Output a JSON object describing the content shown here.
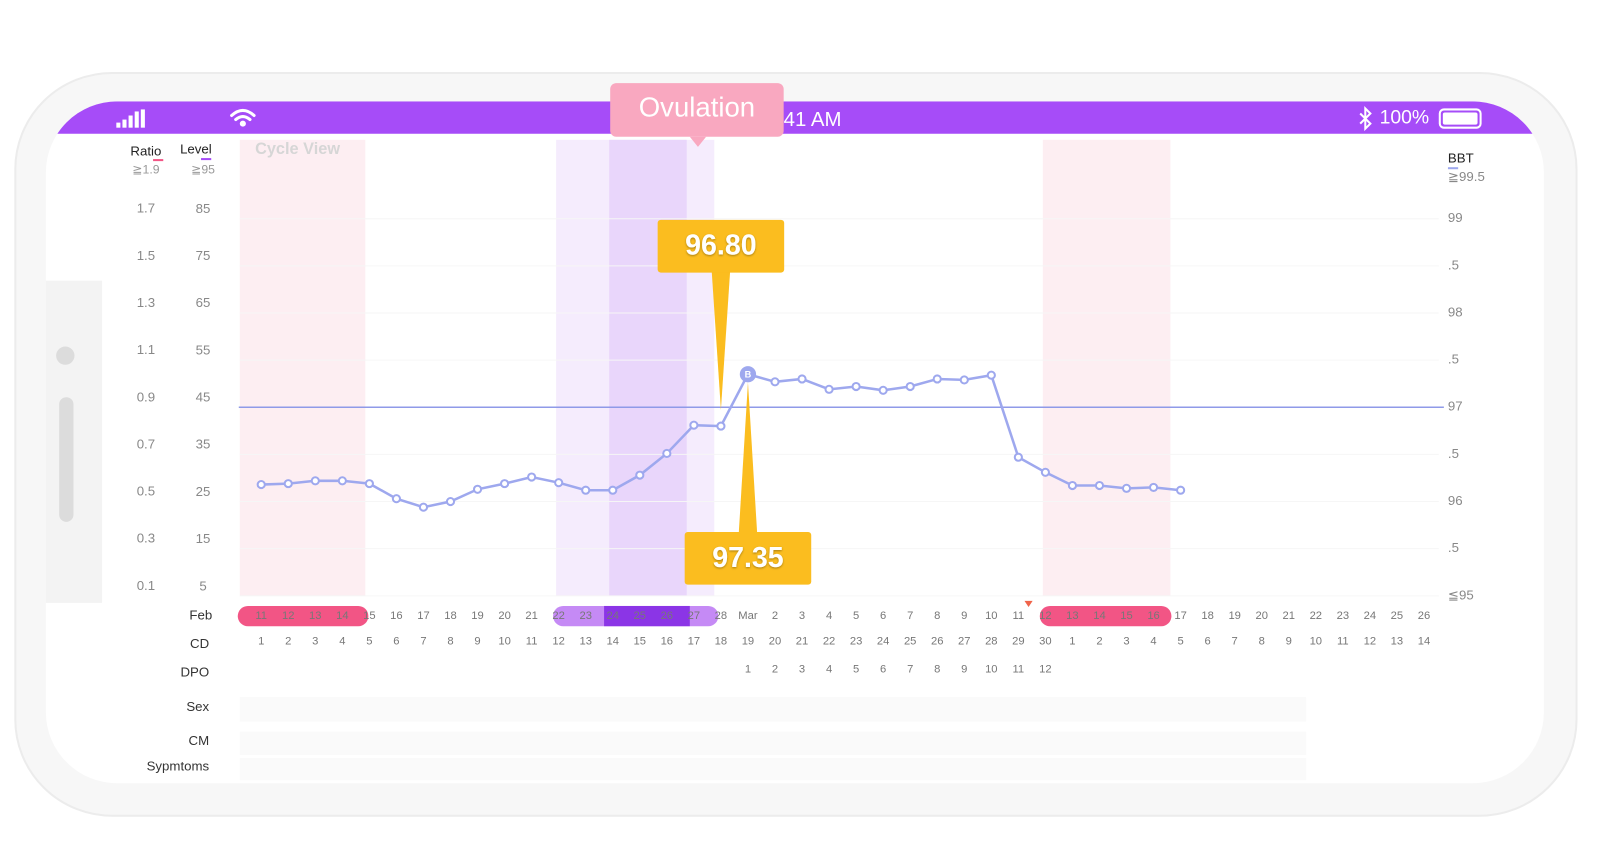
{
  "status_bar": {
    "time": "41 AM",
    "battery": "100%"
  },
  "popup": "Ovulation",
  "view_title": "Cycle View",
  "chart_data": {
    "type": "line",
    "month_label": "Feb",
    "categories": [
      "11",
      "12",
      "13",
      "14",
      "15",
      "16",
      "17",
      "18",
      "19",
      "20",
      "21",
      "22",
      "23",
      "24",
      "25",
      "26",
      "27",
      "28",
      "Mar",
      "2",
      "3",
      "4",
      "5",
      "6",
      "7",
      "8",
      "9",
      "10",
      "11",
      "12",
      "13",
      "14",
      "15",
      "16",
      "17",
      "18",
      "19",
      "20",
      "21",
      "22",
      "23",
      "24",
      "25",
      "26"
    ],
    "cd": [
      "1",
      "2",
      "3",
      "4",
      "5",
      "6",
      "7",
      "8",
      "9",
      "10",
      "11",
      "12",
      "13",
      "14",
      "15",
      "16",
      "17",
      "18",
      "19",
      "20",
      "21",
      "22",
      "23",
      "24",
      "25",
      "26",
      "27",
      "28",
      "29",
      "30",
      "1",
      "2",
      "3",
      "4",
      "5",
      "6",
      "7",
      "8",
      "9",
      "10",
      "11",
      "12",
      "13",
      "14"
    ],
    "dpo": [
      null,
      null,
      null,
      null,
      null,
      null,
      null,
      null,
      null,
      null,
      null,
      null,
      null,
      null,
      null,
      null,
      null,
      null,
      "1",
      "2",
      "3",
      "4",
      "5",
      "6",
      "7",
      "8",
      "9",
      "10",
      "11",
      "12",
      null,
      null,
      null,
      null,
      null,
      null,
      null,
      null,
      null,
      null,
      null,
      null,
      null,
      null
    ],
    "row_labels": {
      "cd": "CD",
      "dpo": "DPO",
      "sex": "Sex",
      "cm": "CM",
      "symptoms": "Sypmtoms"
    },
    "series": [
      {
        "name": "BBT",
        "color": "#9ea8ee",
        "values": [
          96.18,
          96.19,
          96.22,
          96.22,
          96.19,
          96.03,
          95.94,
          96.0,
          96.13,
          96.19,
          96.26,
          96.2,
          96.12,
          96.12,
          96.28,
          96.51,
          96.81,
          96.8,
          97.35,
          97.27,
          97.3,
          97.19,
          97.22,
          97.18,
          97.22,
          97.3,
          97.29,
          97.34,
          96.47,
          96.31,
          96.17,
          96.17,
          96.14,
          96.15,
          96.12,
          null,
          null,
          null,
          null,
          null,
          null,
          null,
          null,
          null
        ],
        "value_labels": [
          null,
          null,
          null,
          null,
          null,
          null,
          null,
          null,
          null,
          null,
          null,
          null,
          null,
          null,
          null,
          null,
          null,
          "96.80",
          "97.35",
          null,
          null,
          null,
          null,
          null,
          null,
          null,
          null,
          null,
          null,
          null,
          null,
          null,
          null,
          null,
          null,
          null,
          null,
          null,
          null,
          null,
          null,
          null,
          null,
          null
        ]
      }
    ],
    "ovulation_marker": "B",
    "coverline": 97,
    "ylim": [
      95,
      99.6
    ],
    "yticks": [
      {
        "value": 99.5,
        "label": "≧99.5"
      },
      99,
      {
        "value": 98.5,
        "label": ".5"
      },
      98,
      {
        "value": 97.5,
        "label": ".5"
      },
      97,
      {
        "value": 96.5,
        "label": ".5"
      },
      96,
      {
        "value": 95.5,
        "label": ".5"
      },
      {
        "value": 95,
        "label": "≦95"
      }
    ],
    "ratio_axis": {
      "label": "Ratio",
      "lim": [
        0.06,
        1.9
      ],
      "ticks": [
        {
          "value": 1.9,
          "label": "≧1.9"
        },
        1.7,
        1.5,
        1.3,
        1.1,
        0.9,
        0.7,
        0.5,
        0.3,
        0.1
      ]
    },
    "level_axis": {
      "label": "Level",
      "lim": [
        3.1,
        95
      ],
      "ticks": [
        {
          "value": 95,
          "label": "≧95"
        },
        85,
        75,
        65,
        55,
        45,
        35,
        25,
        15,
        5
      ]
    }
  }
}
